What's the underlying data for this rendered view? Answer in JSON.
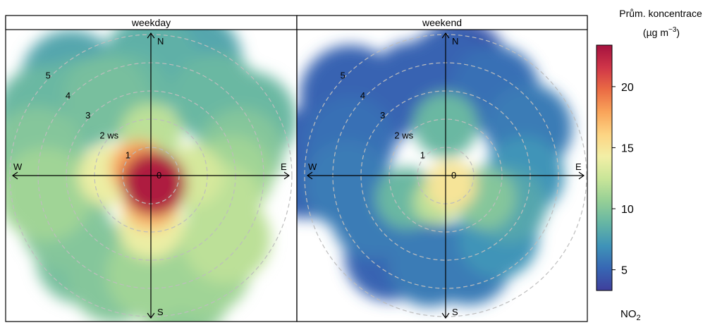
{
  "chart_data": {
    "type": "polar-heatmap",
    "panels": [
      {
        "strip_label": "weekday",
        "compass": {
          "north": "N",
          "east": "E",
          "south": "S",
          "west": "W"
        },
        "ring_labels": [
          "0",
          "1",
          "2 ws",
          "3",
          "4",
          "5"
        ],
        "ring_values": [
          0,
          1,
          2,
          3,
          4,
          5
        ],
        "blobs": [
          {
            "angle_deg": 0,
            "ws": 4.0,
            "conc": 8.5
          },
          {
            "angle_deg": 20,
            "ws": 4.3,
            "conc": 8.0
          },
          {
            "angle_deg": 40,
            "ws": 3.6,
            "conc": 9.0
          },
          {
            "angle_deg": 60,
            "ws": 4.0,
            "conc": 9.0
          },
          {
            "angle_deg": 75,
            "ws": 3.3,
            "conc": 10.0
          },
          {
            "angle_deg": 90,
            "ws": 2.9,
            "conc": 11.0
          },
          {
            "angle_deg": 110,
            "ws": 2.7,
            "conc": 12.0
          },
          {
            "angle_deg": 130,
            "ws": 3.5,
            "conc": 12.0
          },
          {
            "angle_deg": 150,
            "ws": 3.8,
            "conc": 11.0
          },
          {
            "angle_deg": 165,
            "ws": 4.2,
            "conc": 10.5
          },
          {
            "angle_deg": 180,
            "ws": 3.5,
            "conc": 11.0
          },
          {
            "angle_deg": 200,
            "ws": 3.8,
            "conc": 10.0
          },
          {
            "angle_deg": 220,
            "ws": 3.8,
            "conc": 9.5
          },
          {
            "angle_deg": 240,
            "ws": 3.5,
            "conc": 10.0
          },
          {
            "angle_deg": 260,
            "ws": 3.8,
            "conc": 11.0
          },
          {
            "angle_deg": 280,
            "ws": 4.1,
            "conc": 10.0
          },
          {
            "angle_deg": 300,
            "ws": 4.3,
            "conc": 9.0
          },
          {
            "angle_deg": 315,
            "ws": 3.6,
            "conc": 9.0
          },
          {
            "angle_deg": 330,
            "ws": 3.2,
            "conc": 9.5
          },
          {
            "angle_deg": 345,
            "ws": 3.0,
            "conc": 9.0
          },
          {
            "angle_deg": 320,
            "ws": 4.4,
            "conc": 8.0
          },
          {
            "angle_deg": 180,
            "ws": 1.8,
            "conc": 14.0
          },
          {
            "angle_deg": 90,
            "ws": 1.5,
            "conc": 13.0
          },
          {
            "angle_deg": 270,
            "ws": 1.5,
            "conc": 14.0
          },
          {
            "angle_deg": 0,
            "ws": 1.5,
            "conc": 12.0
          }
        ],
        "hotspots": [
          {
            "angle_deg": 160,
            "ws": 0.3,
            "conc": 23
          },
          {
            "angle_deg": 180,
            "ws": 1.0,
            "conc": 17
          },
          {
            "angle_deg": 300,
            "ws": 0.5,
            "conc": 18
          }
        ]
      },
      {
        "strip_label": "weekend",
        "compass": {
          "north": "N",
          "east": "E",
          "south": "S",
          "west": "W"
        },
        "ring_labels": [
          "0",
          "1",
          "2 ws",
          "3",
          "4",
          "5"
        ],
        "ring_values": [
          0,
          1,
          2,
          3,
          4,
          5
        ],
        "blobs": [
          {
            "angle_deg": 0,
            "ws": 3.6,
            "conc": 5.0
          },
          {
            "angle_deg": 30,
            "ws": 3.5,
            "conc": 5.5
          },
          {
            "angle_deg": 60,
            "ws": 3.4,
            "conc": 6.0
          },
          {
            "angle_deg": 90,
            "ws": 2.8,
            "conc": 7.0
          },
          {
            "angle_deg": 115,
            "ws": 2.5,
            "conc": 8.0
          },
          {
            "angle_deg": 140,
            "ws": 2.9,
            "conc": 7.0
          },
          {
            "angle_deg": 165,
            "ws": 3.2,
            "conc": 6.0
          },
          {
            "angle_deg": 190,
            "ws": 3.2,
            "conc": 6.0
          },
          {
            "angle_deg": 215,
            "ws": 3.5,
            "conc": 5.0
          },
          {
            "angle_deg": 240,
            "ws": 3.0,
            "conc": 6.0
          },
          {
            "angle_deg": 265,
            "ws": 3.5,
            "conc": 6.0
          },
          {
            "angle_deg": 290,
            "ws": 3.6,
            "conc": 5.5
          },
          {
            "angle_deg": 315,
            "ws": 3.6,
            "conc": 5.0
          },
          {
            "angle_deg": 340,
            "ws": 3.4,
            "conc": 5.0
          },
          {
            "angle_deg": 8,
            "ws": 3.9,
            "conc": 4.5
          },
          {
            "angle_deg": 0,
            "ws": 1.8,
            "conc": 9.0
          },
          {
            "angle_deg": 120,
            "ws": 1.6,
            "conc": 10.0
          },
          {
            "angle_deg": 240,
            "ws": 1.6,
            "conc": 9.0
          },
          {
            "angle_deg": 310,
            "ws": 4.4,
            "conc": 5.0
          },
          {
            "angle_deg": 275,
            "ws": 5.0,
            "conc": 5.0
          }
        ],
        "hotspots": [
          {
            "angle_deg": 150,
            "ws": 0.4,
            "conc": 15
          },
          {
            "angle_deg": 200,
            "ws": 1.0,
            "conc": 12
          }
        ]
      }
    ],
    "colorbar": {
      "title_line1": "Prům. koncentrace",
      "units_prefix": "(µg m",
      "units_exp": "−3",
      "units_suffix": ")",
      "pollutant_main": "NO",
      "pollutant_sub": "2",
      "range": [
        3.3,
        23.4
      ],
      "ticks": [
        5,
        10,
        15,
        20
      ],
      "tick_labels": [
        "5",
        "10",
        "15",
        "20"
      ],
      "colors": [
        "#3f3f9c",
        "#3767b4",
        "#3f93b8",
        "#65b5a4",
        "#95cf96",
        "#c8e598",
        "#f2efa6",
        "#fdd483",
        "#f9a45a",
        "#ea6b44",
        "#cf3548",
        "#a5123f"
      ]
    }
  }
}
